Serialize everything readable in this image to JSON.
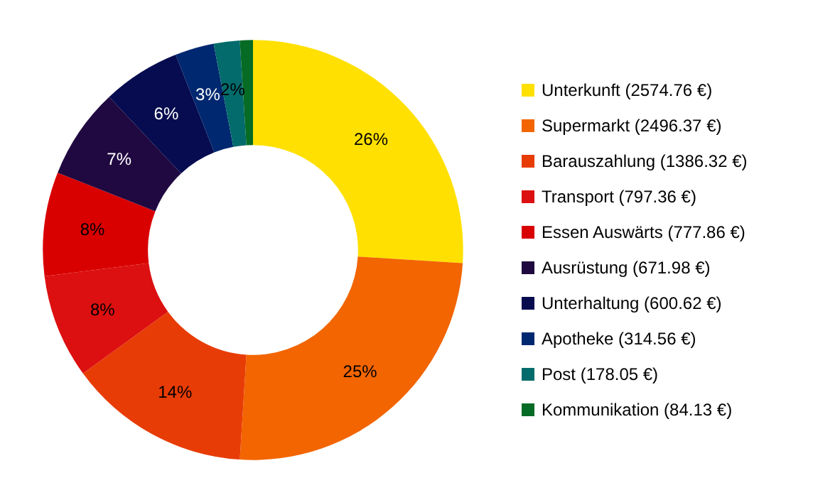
{
  "chart_data": {
    "type": "donut",
    "categories": [
      "Unterkunft (2574.76 €)",
      "Supermarkt (2496.37 €)",
      "Barauszahlung (1386.32 €)",
      "Transport (797.36 €)",
      "Essen Auswärts (777.86 €)",
      "Ausrüstung (671.98 €)",
      "Unterhaltung (600.62 €)",
      "Apotheke (314.56 €)",
      "Post (178.05 €)",
      "Kommunikation (84.13 €)"
    ],
    "values": [
      26,
      25,
      14,
      8,
      8,
      7,
      6,
      3,
      2,
      1
    ],
    "value_labels": [
      "26%",
      "25%",
      "14%",
      "8%",
      "8%",
      "7%",
      "6%",
      "3%",
      "2%",
      null
    ],
    "colors": [
      "#ffe000",
      "#f26500",
      "#e83c06",
      "#dc1010",
      "#d90000",
      "#200840",
      "#060c4f",
      "#002870",
      "#036b6b",
      "#066b24"
    ],
    "legend": "right"
  }
}
